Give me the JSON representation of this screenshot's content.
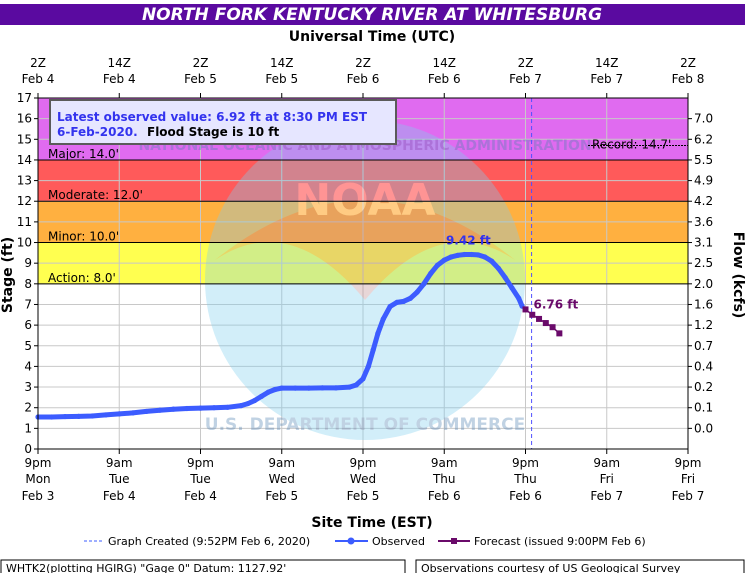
{
  "header": {
    "title": "NORTH FORK KENTUCKY RIVER AT WHITESBURG",
    "top_axis_title": "Universal Time (UTC)",
    "bottom_axis_title": "Site Time (EST)",
    "left_axis_title": "Stage (ft)",
    "right_axis_title": "Flow (kcfs)"
  },
  "info_box": {
    "line1": "Latest observed value: 6.92 ft at 8:30 PM EST",
    "line2_date": "6-Feb-2020.",
    "line2_flood": "Flood Stage is 10 ft"
  },
  "legend": {
    "created": "Graph Created (9:52PM Feb 6, 2020)",
    "observed": "Observed",
    "forecast": "Forecast (issued 9:00PM Feb 6)"
  },
  "footer": {
    "left": "WHTK2(plotting HGIRG) \"Gage 0\" Datum: 1127.92'",
    "right": "Observations courtesy of US Geological Survey"
  },
  "watermark": {
    "logo_text": "NOAA",
    "ring_top": "NATIONAL OCEANIC AND ATMOSPHERIC ADMINISTRATION",
    "ring_bottom": "U.S. DEPARTMENT OF COMMERCE"
  },
  "colors": {
    "title_bg": "#5a0aa0",
    "major": "#e58fe8",
    "major_band": "#e06bf0",
    "moderate": "#ff5a5a",
    "minor": "#ffb040",
    "action": "#ffff50",
    "observed": "#3c5cff",
    "forecast": "#6a0a6a",
    "grid": "#c8c8c8"
  },
  "chart_data": {
    "type": "line",
    "ylabel": "Stage (ft)",
    "y2label": "Flow (kcfs)",
    "ylim": [
      0,
      17
    ],
    "yticks": [
      0,
      1,
      2,
      3,
      4,
      5,
      6,
      7,
      8,
      9,
      10,
      11,
      12,
      13,
      14,
      15,
      16,
      17
    ],
    "flow_ticks": [
      {
        "stage": 1,
        "label": "0.0"
      },
      {
        "stage": 2,
        "label": "0.1"
      },
      {
        "stage": 3,
        "label": "0.2"
      },
      {
        "stage": 4,
        "label": "0.4"
      },
      {
        "stage": 5,
        "label": "0.7"
      },
      {
        "stage": 6,
        "label": "1.2"
      },
      {
        "stage": 7,
        "label": "1.6"
      },
      {
        "stage": 8,
        "label": "2.0"
      },
      {
        "stage": 9,
        "label": "2.5"
      },
      {
        "stage": 10,
        "label": "3.1"
      },
      {
        "stage": 11,
        "label": "3.6"
      },
      {
        "stage": 12,
        "label": "4.2"
      },
      {
        "stage": 13,
        "label": "4.9"
      },
      {
        "stage": 14,
        "label": "5.5"
      },
      {
        "stage": 15,
        "label": "6.2"
      },
      {
        "stage": 16,
        "label": "7.0"
      }
    ],
    "x_hours_range": [
      0,
      96
    ],
    "x_ticks_est": [
      {
        "h": 0,
        "l1": "9pm",
        "l2": "Mon",
        "l3": "Feb 3"
      },
      {
        "h": 12,
        "l1": "9am",
        "l2": "Tue",
        "l3": "Feb 4"
      },
      {
        "h": 24,
        "l1": "9pm",
        "l2": "Tue",
        "l3": "Feb 4"
      },
      {
        "h": 36,
        "l1": "9am",
        "l2": "Wed",
        "l3": "Feb 5"
      },
      {
        "h": 48,
        "l1": "9pm",
        "l2": "Wed",
        "l3": "Feb 5"
      },
      {
        "h": 60,
        "l1": "9am",
        "l2": "Thu",
        "l3": "Feb 6"
      },
      {
        "h": 72,
        "l1": "9pm",
        "l2": "Thu",
        "l3": "Feb 6"
      },
      {
        "h": 84,
        "l1": "9am",
        "l2": "Fri",
        "l3": "Feb 7"
      },
      {
        "h": 96,
        "l1": "9pm",
        "l2": "Fri",
        "l3": "Feb 7"
      }
    ],
    "x_ticks_utc": [
      {
        "h": 0,
        "l1": "2Z",
        "l2": "Feb 4"
      },
      {
        "h": 12,
        "l1": "14Z",
        "l2": "Feb 4"
      },
      {
        "h": 24,
        "l1": "2Z",
        "l2": "Feb 5"
      },
      {
        "h": 36,
        "l1": "14Z",
        "l2": "Feb 5"
      },
      {
        "h": 48,
        "l1": "2Z",
        "l2": "Feb 6"
      },
      {
        "h": 60,
        "l1": "14Z",
        "l2": "Feb 6"
      },
      {
        "h": 72,
        "l1": "2Z",
        "l2": "Feb 7"
      },
      {
        "h": 84,
        "l1": "14Z",
        "l2": "Feb 7"
      },
      {
        "h": 96,
        "l1": "2Z",
        "l2": "Feb 8"
      }
    ],
    "thresholds": [
      {
        "name": "Action",
        "label": "Action: 8.0'",
        "value": 8.0,
        "top": 10.0
      },
      {
        "name": "Minor",
        "label": "Minor: 10.0'",
        "value": 10.0,
        "top": 12.0
      },
      {
        "name": "Moderate",
        "label": "Moderate: 12.0'",
        "value": 12.0,
        "top": 14.0
      },
      {
        "name": "Major",
        "label": "Major: 14.0'",
        "value": 14.0,
        "top": 17.0
      }
    ],
    "record": {
      "label": "Record: 14.7'",
      "value": 14.7
    },
    "graph_created_h": 72.9,
    "peak_label": "9.42 ft",
    "peak": {
      "h": 64,
      "v": 9.42
    },
    "latest_fcst_label": "6.76 ft",
    "observed": [
      {
        "h": 0,
        "v": 1.55
      },
      {
        "h": 2,
        "v": 1.55
      },
      {
        "h": 4,
        "v": 1.57
      },
      {
        "h": 6,
        "v": 1.58
      },
      {
        "h": 8,
        "v": 1.6
      },
      {
        "h": 10,
        "v": 1.65
      },
      {
        "h": 12,
        "v": 1.7
      },
      {
        "h": 14,
        "v": 1.75
      },
      {
        "h": 16,
        "v": 1.82
      },
      {
        "h": 18,
        "v": 1.88
      },
      {
        "h": 20,
        "v": 1.93
      },
      {
        "h": 22,
        "v": 1.96
      },
      {
        "h": 24,
        "v": 1.98
      },
      {
        "h": 26,
        "v": 2.0
      },
      {
        "h": 28,
        "v": 2.02
      },
      {
        "h": 30,
        "v": 2.1
      },
      {
        "h": 31,
        "v": 2.2
      },
      {
        "h": 32,
        "v": 2.35
      },
      {
        "h": 33,
        "v": 2.55
      },
      {
        "h": 34,
        "v": 2.75
      },
      {
        "h": 35,
        "v": 2.88
      },
      {
        "h": 36,
        "v": 2.95
      },
      {
        "h": 38,
        "v": 2.95
      },
      {
        "h": 40,
        "v": 2.95
      },
      {
        "h": 42,
        "v": 2.96
      },
      {
        "h": 44,
        "v": 2.96
      },
      {
        "h": 46,
        "v": 3.0
      },
      {
        "h": 47,
        "v": 3.1
      },
      {
        "h": 48,
        "v": 3.4
      },
      {
        "h": 48.8,
        "v": 4.0
      },
      {
        "h": 49.5,
        "v": 4.8
      },
      {
        "h": 50.2,
        "v": 5.6
      },
      {
        "h": 51,
        "v": 6.3
      },
      {
        "h": 52,
        "v": 6.9
      },
      {
        "h": 53,
        "v": 7.1
      },
      {
        "h": 54,
        "v": 7.15
      },
      {
        "h": 55,
        "v": 7.3
      },
      {
        "h": 56,
        "v": 7.6
      },
      {
        "h": 57,
        "v": 8.0
      },
      {
        "h": 58,
        "v": 8.5
      },
      {
        "h": 59,
        "v": 8.9
      },
      {
        "h": 60,
        "v": 9.15
      },
      {
        "h": 61,
        "v": 9.3
      },
      {
        "h": 62,
        "v": 9.38
      },
      {
        "h": 63,
        "v": 9.42
      },
      {
        "h": 64,
        "v": 9.42
      },
      {
        "h": 65,
        "v": 9.4
      },
      {
        "h": 66,
        "v": 9.3
      },
      {
        "h": 67,
        "v": 9.1
      },
      {
        "h": 68,
        "v": 8.75
      },
      {
        "h": 69,
        "v": 8.3
      },
      {
        "h": 70,
        "v": 7.8
      },
      {
        "h": 71,
        "v": 7.3
      },
      {
        "h": 71.5,
        "v": 6.92
      }
    ],
    "forecast": [
      {
        "h": 72,
        "v": 6.76
      },
      {
        "h": 73,
        "v": 6.5
      },
      {
        "h": 74,
        "v": 6.3
      },
      {
        "h": 75,
        "v": 6.1
      },
      {
        "h": 76,
        "v": 5.9
      },
      {
        "h": 77,
        "v": 5.6
      }
    ]
  }
}
